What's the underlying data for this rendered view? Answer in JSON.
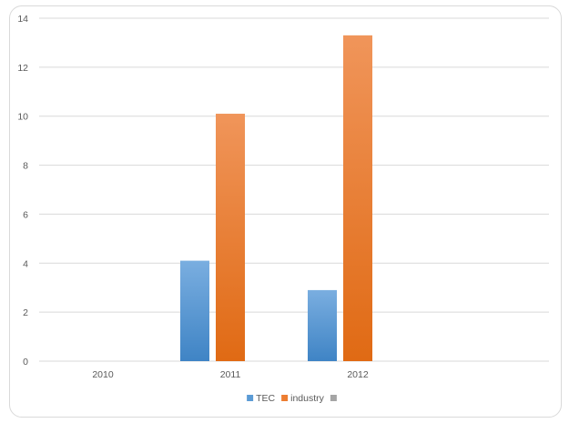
{
  "chart_data": {
    "type": "bar",
    "title": "",
    "xlabel": "",
    "ylabel": "",
    "categories": [
      "2010",
      "2011",
      "2012"
    ],
    "series": [
      {
        "name": "TEC",
        "values": [
          0,
          4.1,
          2.9
        ],
        "color": "#5b9bd5"
      },
      {
        "name": "industry",
        "values": [
          0,
          10.1,
          13.3
        ],
        "color": "#ed7d31"
      },
      {
        "name": "",
        "values": [
          0,
          0,
          0
        ],
        "color": "#a5a5a5"
      }
    ],
    "ylim": [
      0,
      14
    ],
    "yticks": [
      "0",
      "2",
      "4",
      "6",
      "8",
      "10",
      "12",
      "14"
    ],
    "grid": true,
    "legend_position": "bottom"
  }
}
